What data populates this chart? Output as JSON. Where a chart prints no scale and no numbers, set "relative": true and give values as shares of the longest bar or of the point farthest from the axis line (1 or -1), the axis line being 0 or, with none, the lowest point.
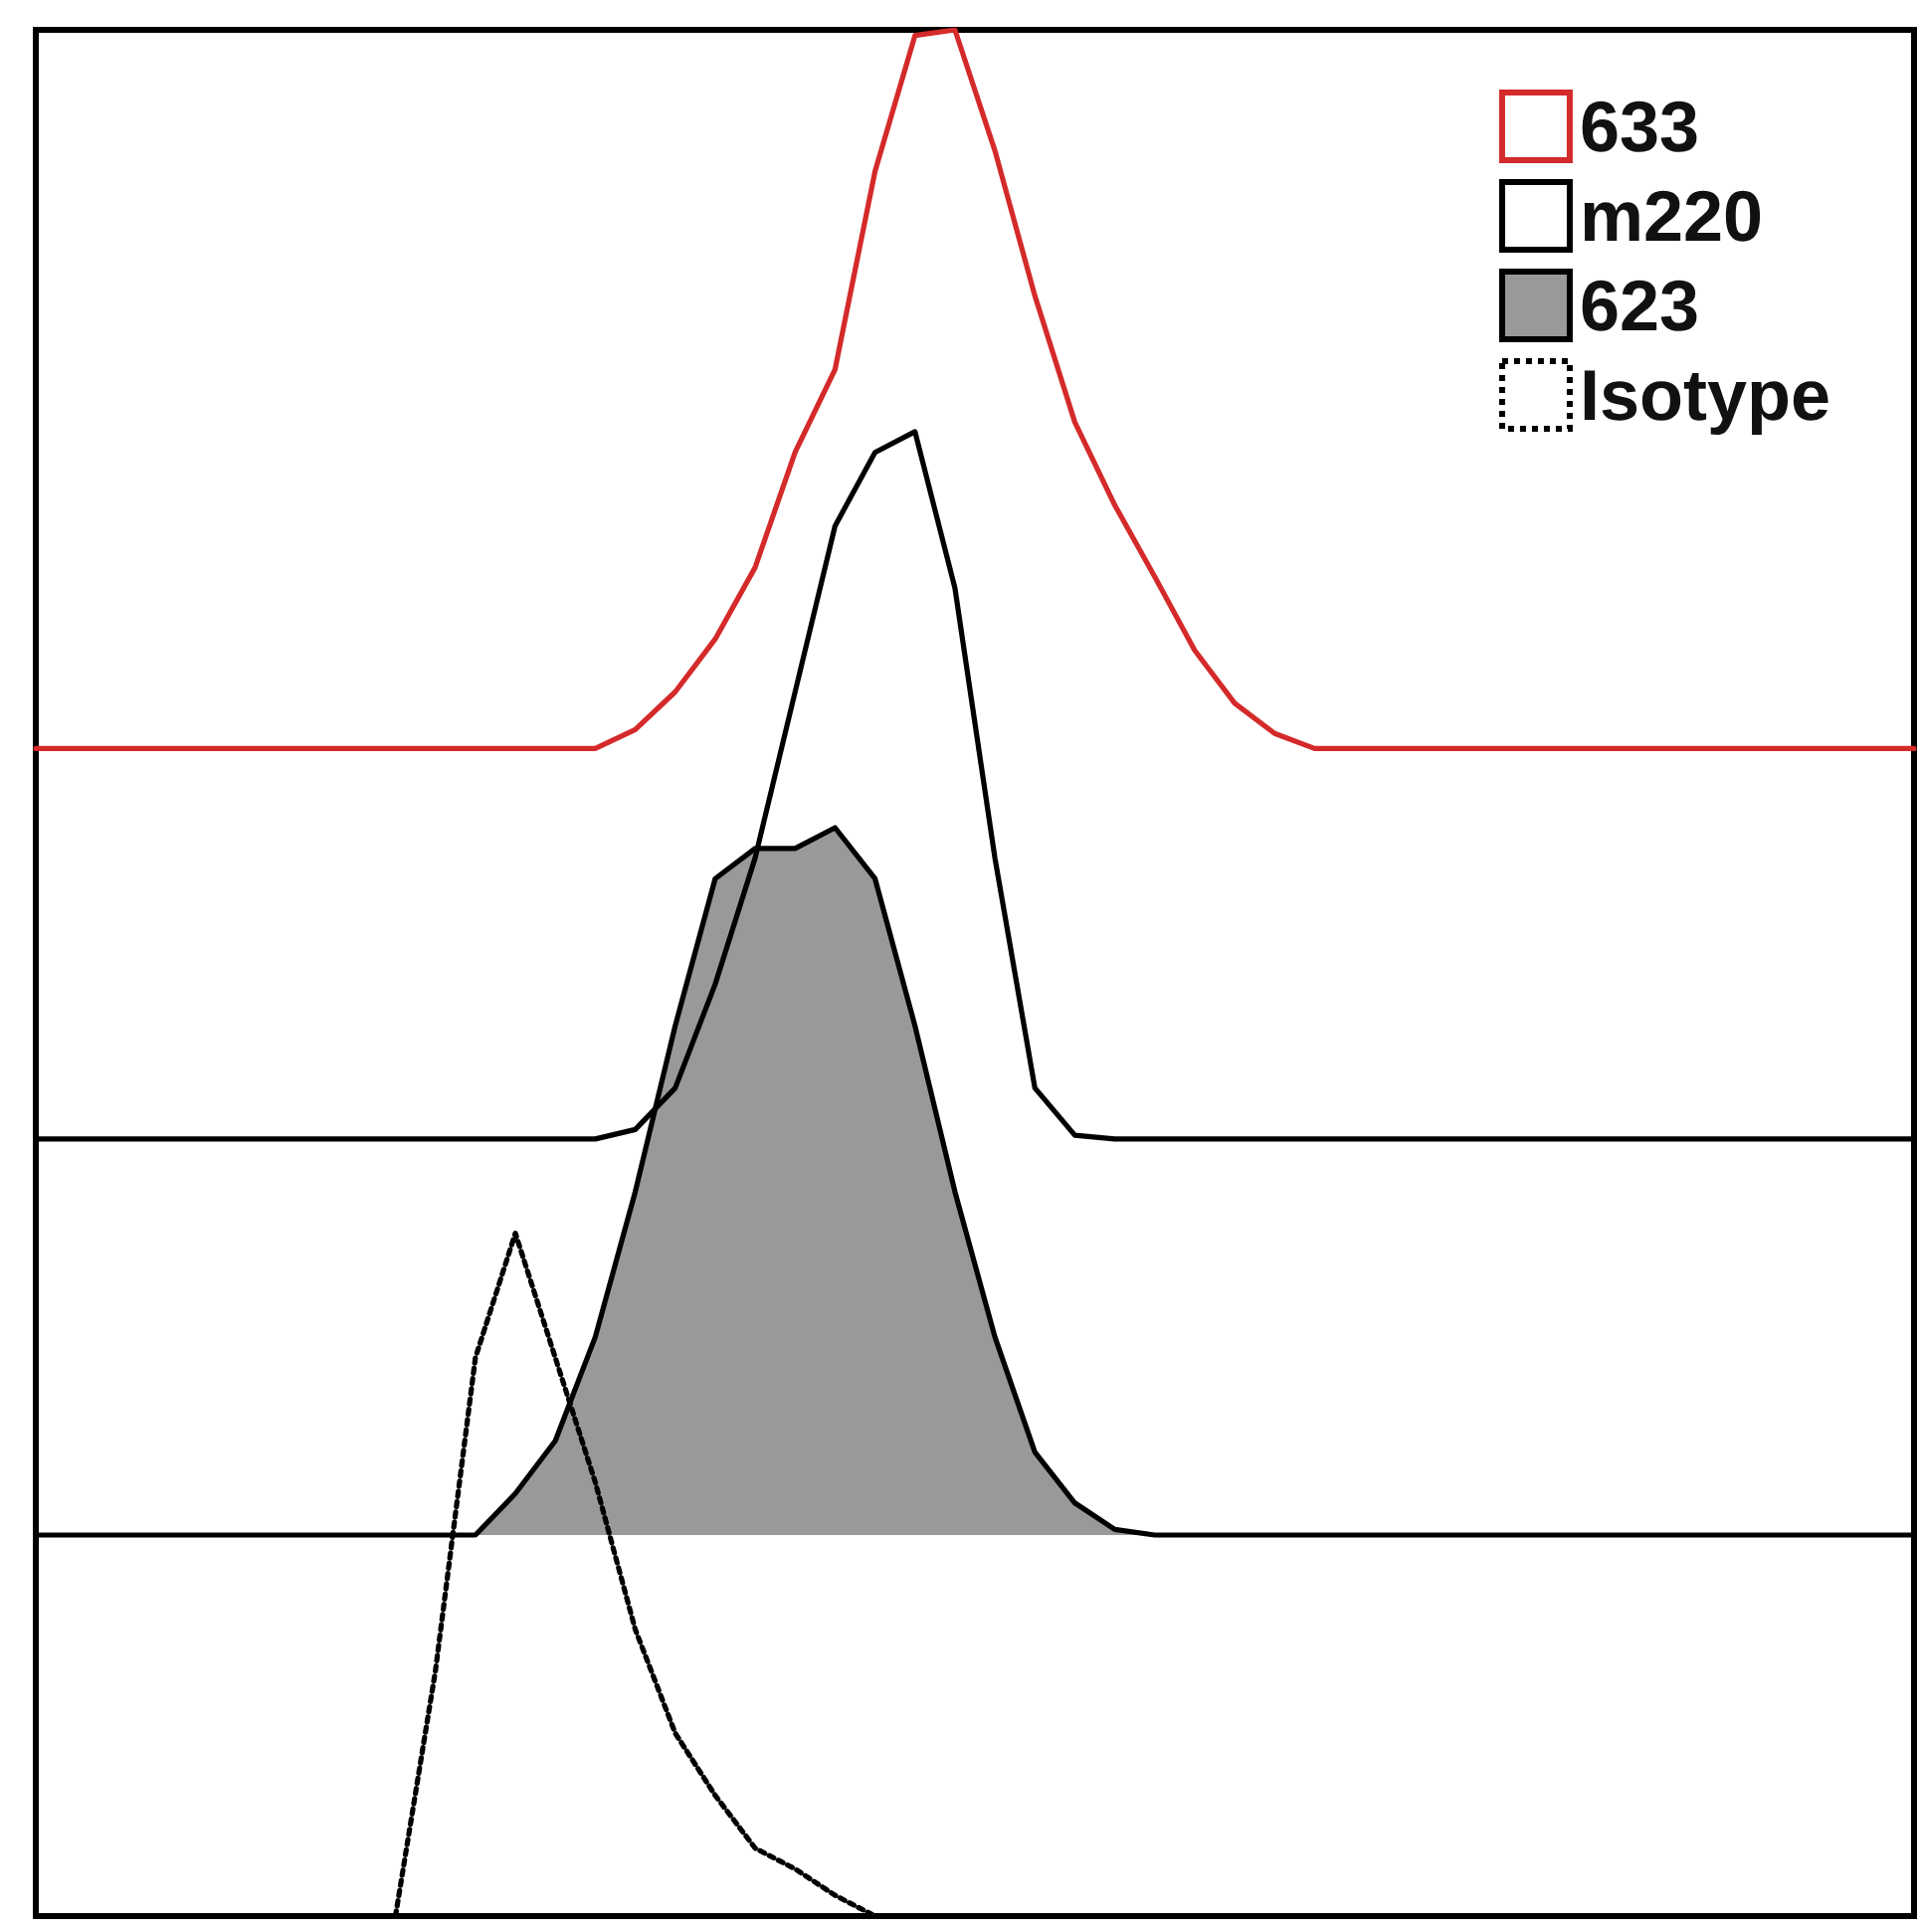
{
  "chart_data": {
    "type": "line",
    "relative": true,
    "grid": false,
    "legend": "top right",
    "marker": "none",
    "categories": [
      null,
      null,
      null,
      null,
      null,
      null,
      null,
      null,
      null,
      null,
      null,
      null,
      null,
      null,
      null,
      null,
      null,
      null,
      null,
      null,
      null,
      null,
      null,
      null,
      null,
      null,
      null,
      null,
      null,
      null,
      null,
      null,
      null,
      null,
      null,
      null,
      null,
      null,
      null,
      null,
      null,
      null,
      null,
      null,
      null,
      null,
      null,
      null
    ],
    "series": [
      {
        "name": "633",
        "color": "#d42a2a",
        "line_style": "solid",
        "values": [
          0.619,
          0.619,
          0.619,
          0.619,
          0.619,
          0.619,
          0.619,
          0.619,
          0.619,
          0.619,
          0.619,
          0.619,
          0.619,
          0.619,
          0.619,
          0.629,
          0.649,
          0.677,
          0.715,
          0.776,
          0.82,
          0.925,
          0.997,
          1,
          0.936,
          0.859,
          0.792,
          0.748,
          0.71,
          0.671,
          0.643,
          0.627,
          0.619,
          0.619,
          0.619,
          0.619,
          0.619,
          0.619,
          0.619,
          0.619,
          0.619,
          0.619,
          0.619,
          0.619,
          0.619,
          0.619,
          0.619,
          0.619
        ]
      },
      {
        "name": "m220",
        "color": "#000000",
        "line_style": "solid",
        "values": [
          0.412,
          0.412,
          0.412,
          0.412,
          0.412,
          0.412,
          0.412,
          0.412,
          0.412,
          0.412,
          0.412,
          0.412,
          0.412,
          0.412,
          0.412,
          0.417,
          0.439,
          0.494,
          0.561,
          0.649,
          0.737,
          0.776,
          0.787,
          0.704,
          0.561,
          0.439,
          0.414,
          0.412,
          0.412,
          0.412,
          0.412,
          0.412,
          0.412,
          0.412,
          0.412,
          0.412,
          0.412,
          0.412,
          0.412,
          0.412,
          0.412,
          0.412,
          0.412,
          0.412,
          0.412,
          0.412,
          0.412,
          0.412
        ]
      },
      {
        "name": "623",
        "color": "#999999",
        "type": "area",
        "line_style": "solid",
        "values": [
          0.202,
          0.202,
          0.202,
          0.202,
          0.202,
          0.202,
          0.202,
          0.202,
          0.202,
          0.202,
          0.202,
          0.202,
          0.224,
          0.252,
          0.307,
          0.384,
          0.472,
          0.55,
          0.566,
          0.566,
          0.577,
          0.55,
          0.472,
          0.384,
          0.307,
          0.246,
          0.219,
          0.205,
          0.202,
          0.202,
          0.202,
          0.202,
          0.202,
          0.202,
          0.202,
          0.202,
          0.202,
          0.202,
          0.202,
          0.202,
          0.202,
          0.202,
          0.202,
          0.202,
          0.202,
          0.202,
          0.202,
          0.202
        ]
      },
      {
        "name": "Isotype",
        "color": "#000000",
        "line_style": "dotted",
        "values": [
          null,
          null,
          null,
          null,
          null,
          null,
          null,
          null,
          null,
          0,
          0.13,
          0.296,
          0.362,
          0.296,
          0.23,
          0.152,
          0.097,
          0.064,
          0.036,
          0.025,
          0.011,
          0,
          null,
          null,
          null,
          null,
          null,
          null,
          null,
          null,
          null,
          null,
          null,
          null,
          null,
          null,
          null,
          null,
          null,
          null,
          null,
          null,
          null,
          null,
          null,
          null,
          null,
          null
        ]
      }
    ]
  }
}
